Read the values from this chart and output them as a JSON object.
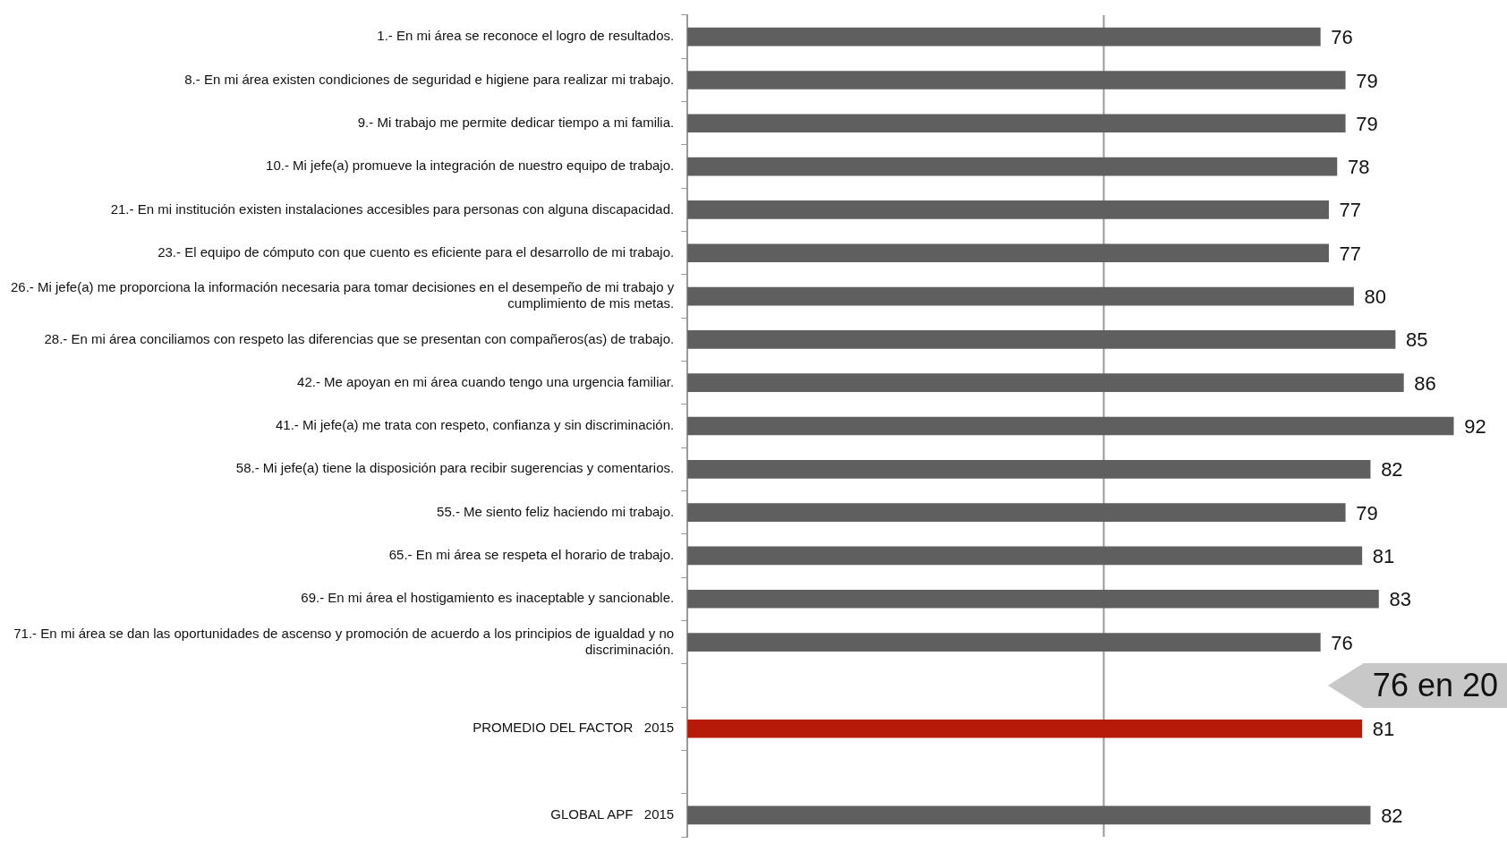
{
  "chart_data": {
    "type": "bar",
    "orientation": "horizontal",
    "categories": [
      "1.- En mi área se reconoce el logro de resultados.",
      "8.- En mi área existen condiciones de seguridad e higiene para realizar mi trabajo.",
      "9.- Mi trabajo me permite dedicar tiempo a mi familia.",
      "10.- Mi jefe(a) promueve la integración de nuestro equipo de trabajo.",
      "21.- En mi institución existen instalaciones accesibles para personas con alguna discapacidad.",
      "23.- El equipo de cómputo con que cuento es eficiente para el desarrollo de mi trabajo.",
      "26.- Mi jefe(a) me proporciona la información necesaria para tomar decisiones en el desempeño de mi trabajo y cumplimiento de mis metas.",
      "28.- En mi área conciliamos con respeto las diferencias que se presentan con compañeros(as) de trabajo.",
      "42.- Me apoyan en mi área cuando tengo una urgencia familiar.",
      "41.- Mi jefe(a) me trata con respeto, confianza y sin discriminación.",
      "58.- Mi jefe(a) tiene la disposición para recibir sugerencias y comentarios.",
      "55.- Me siento feliz haciendo mi trabajo.",
      "65.- En mi área se respeta el horario de trabajo.",
      "69.- En mi área el hostigamiento es inaceptable y sancionable.",
      "71.- En mi área se dan las oportunidades de ascenso y promoción de acuerdo a los principios de igualdad y no discriminación.",
      null,
      "PROMEDIO DEL FACTOR   2015",
      null,
      "GLOBAL APF   2015"
    ],
    "values": [
      76,
      79,
      79,
      78,
      77,
      77,
      80,
      85,
      86,
      92,
      82,
      79,
      81,
      83,
      76,
      null,
      81,
      null,
      82
    ],
    "colors": [
      "#5f5f5f",
      "#5f5f5f",
      "#5f5f5f",
      "#5f5f5f",
      "#5f5f5f",
      "#5f5f5f",
      "#5f5f5f",
      "#5f5f5f",
      "#5f5f5f",
      "#5f5f5f",
      "#5f5f5f",
      "#5f5f5f",
      "#5f5f5f",
      "#5f5f5f",
      "#5f5f5f",
      "#5f5f5f",
      "#b81a0a",
      "#5f5f5f",
      "#5f5f5f"
    ],
    "xlim": [
      0,
      98
    ],
    "tick_labels": "y",
    "data_labels": true,
    "legend": false,
    "ref_lines": [
      {
        "axis": "x",
        "value": 50,
        "color": "#9a9a9a"
      }
    ],
    "annotations": [
      "76 en 20"
    ]
  }
}
